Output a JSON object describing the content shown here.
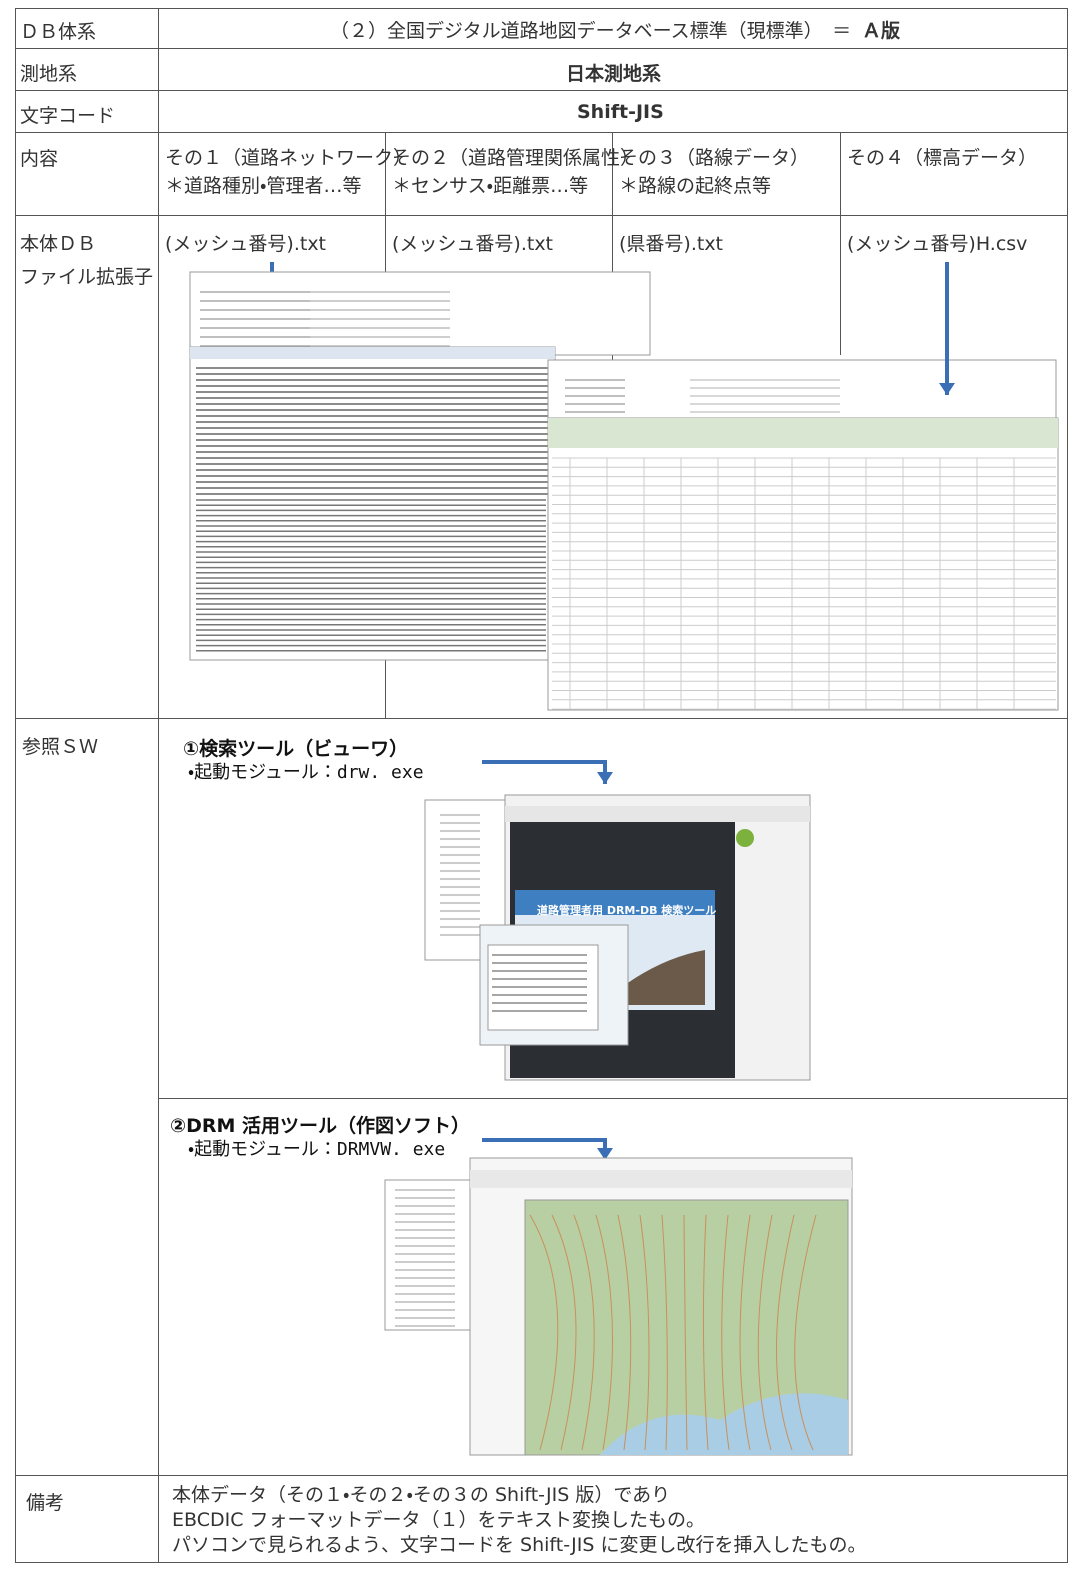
{
  "table": {
    "rows": [
      {
        "label": "ＤＢ体系",
        "value": "（２）全国デジタル道路地図データベース標準（現標準）　＝",
        "emphasis": "Ａ版"
      },
      {
        "label": "測地系",
        "value": "日本測地系"
      },
      {
        "label": "文字コード",
        "value": "Shift-JIS"
      },
      {
        "label": "内容",
        "cells": [
          {
            "line1": "その１（道路ネットワーク）",
            "line2": "＊道路種別・管理者…等"
          },
          {
            "line1": "その２（道路管理関係属性）",
            "line2": "＊センサス・距離票…等"
          },
          {
            "line1": "その３（路線データ）",
            "line2": "＊路線の起終点等"
          },
          {
            "line1": "その４（標高データ）",
            "line2": ""
          }
        ]
      },
      {
        "label": [
          "本体ＤＢ",
          "ファイル拡張子"
        ],
        "cells": [
          "(メッシュ番号).txt",
          "(メッシュ番号).txt",
          "(県番号).txt",
          "(メッシュ番号)H.csv"
        ]
      },
      {
        "label": "参照ＳＷ",
        "tools": [
          {
            "title": "①検索ツール（ビューワ）",
            "module": "・起動モジュール：drw. exe",
            "screen_title": "道路管理者用 DRM-DB 検索ツール"
          },
          {
            "title": "②DRM 活用ツール（作図ソフト）",
            "module": "・起動モジュール：DRMVW. exe"
          }
        ]
      },
      {
        "label": "備考",
        "lines": [
          "本体データ（その１・その２・その３の Shift-JIS 版）であり",
          "EBCDIC フォーマットデータ（１）をテキスト変換したもの。",
          "パソコンで見られるよう、文字コードを Shift-JIS に変更し改行を挿入したもの。"
        ]
      }
    ]
  }
}
